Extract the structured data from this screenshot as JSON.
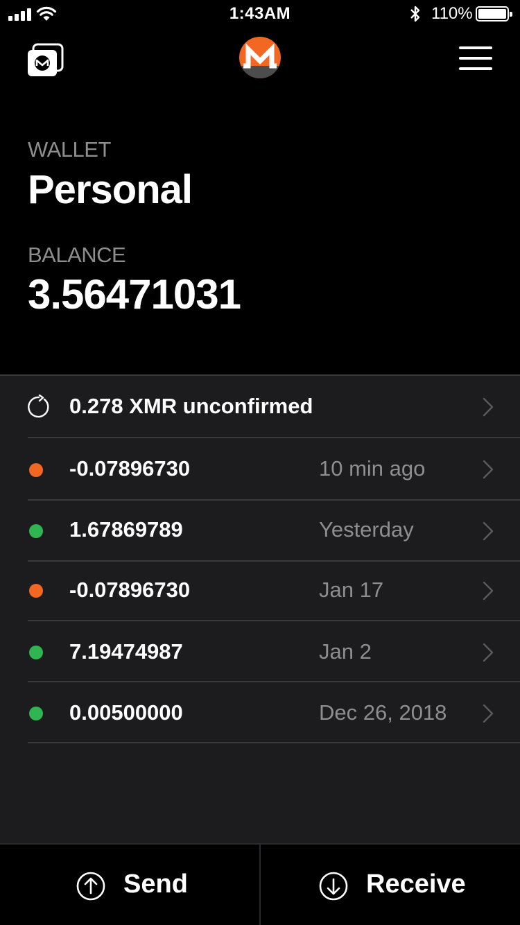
{
  "status_bar": {
    "time": "1:43AM",
    "battery_percent": "110%"
  },
  "header": {
    "wallets_icon": "wallets-icon",
    "logo": "monero-logo",
    "menu_icon": "hamburger-menu-icon"
  },
  "wallet": {
    "label": "WALLET",
    "name": "Personal",
    "balance_label": "BALANCE",
    "balance": "3.56471031"
  },
  "pending": {
    "text": "0.278 XMR unconfirmed",
    "icon": "refresh-icon"
  },
  "transactions": [
    {
      "amount": "-0.07896730",
      "date": "10 min ago",
      "direction": "out"
    },
    {
      "amount": "1.67869789",
      "date": "Yesterday",
      "direction": "in"
    },
    {
      "amount": "-0.07896730",
      "date": "Jan 17",
      "direction": "out"
    },
    {
      "amount": "7.19474987",
      "date": "Jan 2",
      "direction": "in"
    },
    {
      "amount": "0.00500000",
      "date": "Dec 26, 2018",
      "direction": "in"
    }
  ],
  "actions": {
    "send": "Send",
    "receive": "Receive"
  },
  "colors": {
    "brand_orange": "#f26822",
    "incoming_green": "#2fb552",
    "panel_bg": "#1c1c1e"
  }
}
